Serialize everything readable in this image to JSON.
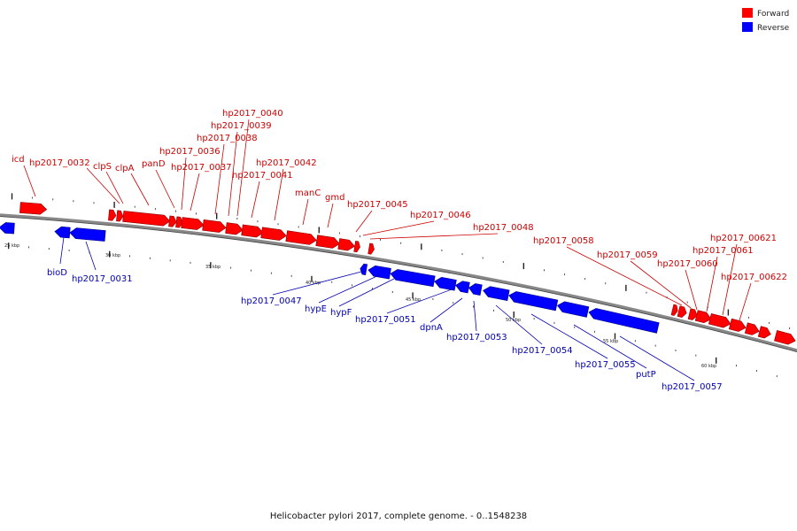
{
  "legend": {
    "items": [
      {
        "label": "Forward",
        "color": "#ff0000"
      },
      {
        "label": "Reverse",
        "color": "#0000ff"
      }
    ]
  },
  "caption": "Helicobacter pylori 2017, complete genome. - 0..1548238",
  "ruler": {
    "ticks": [
      "25 kbp",
      "30 kbp",
      "35 kbp",
      "40 kbp",
      "45 kbp",
      "50 kbp",
      "55 kbp",
      "60 kbp"
    ]
  },
  "genes": {
    "forward": [
      "icd",
      "hp2017_0032",
      "clpS",
      "clpA",
      "panD",
      "hp2017_0036",
      "hp2017_0037",
      "hp2017_0038",
      "hp2017_0039",
      "hp2017_0040",
      "hp2017_0041",
      "hp2017_0042",
      "manC",
      "gmd",
      "hp2017_0045",
      "hp2017_0046",
      "hp2017_0048",
      "hp2017_0058",
      "hp2017_0059",
      "hp2017_0060",
      "hp2017_0061",
      "hp2017_00621",
      "hp2017_00622"
    ],
    "reverse": [
      "bioD",
      "hp2017_0031",
      "hp2017_0047",
      "hypE",
      "hypF",
      "hp2017_0051",
      "dpnA",
      "hp2017_0053",
      "hp2017_0054",
      "hp2017_0055",
      "putP",
      "hp2017_0057"
    ]
  }
}
